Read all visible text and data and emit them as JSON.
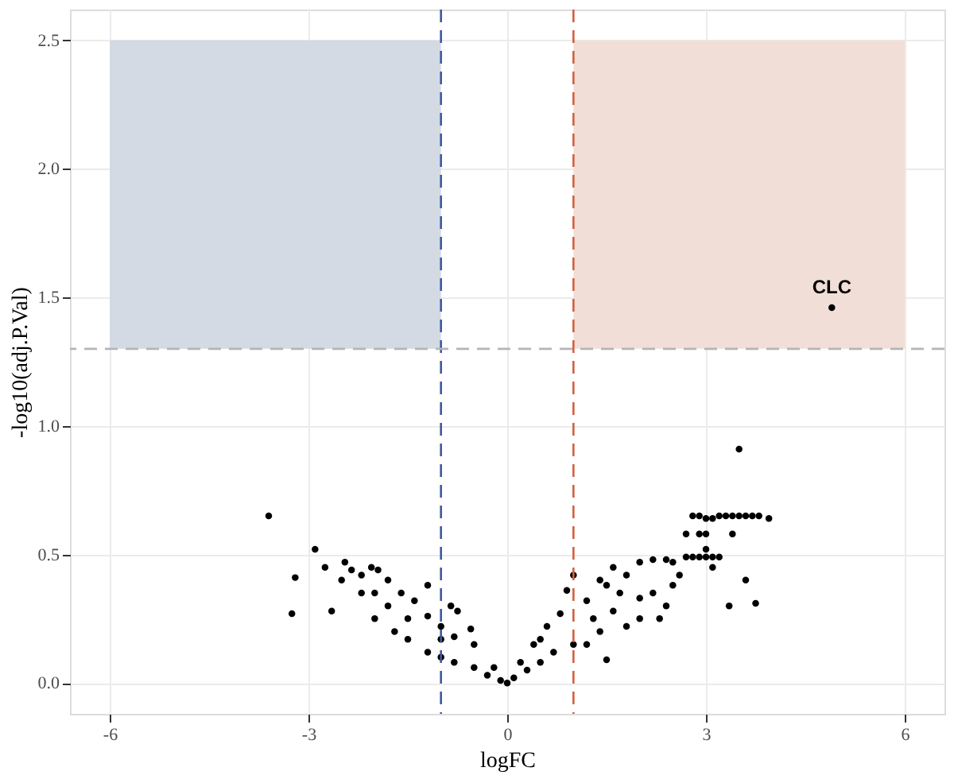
{
  "chart_data": {
    "type": "scatter",
    "xlabel": "logFC",
    "ylabel": "-log10(adj.P.Val)",
    "xlim": [
      -6.6,
      6.6
    ],
    "xticks": [
      -6,
      -3,
      0,
      3,
      6
    ],
    "ylim": [
      -0.12,
      2.62
    ],
    "yticks": [
      {
        "value": 0,
        "label": "0.0"
      },
      0.5,
      {
        "value": 1,
        "label": "1.0"
      },
      1.5,
      {
        "value": 2,
        "label": "2.0"
      },
      2.5
    ],
    "grid": true,
    "marker": "circle",
    "series": [
      {
        "color": "#000000",
        "x": [
          -3.6,
          -3.2,
          -3.25,
          -2.9,
          -2.75,
          -2.65,
          -2.5,
          -2.45,
          -2.35,
          -2.2,
          -2.05,
          -1.95,
          -1.8,
          -1.6,
          -1.4,
          -1.2,
          -1.2,
          -0.85,
          -0.75,
          -0.55,
          -1.0,
          -2.2,
          -2.0,
          -1.7,
          -1.5,
          -1.2,
          -1.0,
          -0.8,
          -0.5,
          -0.3,
          -0.1,
          0,
          -0.5,
          -0.8,
          -1.0,
          -1.5,
          -1.8,
          -2.0,
          -0.2,
          0.1,
          0.2,
          0.3,
          0.4,
          0.5,
          0.6,
          0.7,
          0.8,
          0.9,
          1.0,
          1.0,
          1.2,
          1.2,
          1.4,
          1.4,
          1.5,
          1.6,
          1.6,
          1.8,
          1.8,
          2.0,
          2.0,
          2.0,
          2.2,
          2.2,
          2.3,
          2.4,
          2.5,
          2.5,
          2.6,
          2.7,
          2.8,
          2.9,
          3.0,
          3.1,
          3.2,
          3.0,
          3.1,
          2.7,
          2.9,
          3.0,
          2.8,
          2.9,
          3.0,
          3.1,
          3.2,
          3.3,
          3.4,
          3.5,
          3.6,
          3.7,
          3.8,
          3.95,
          3.4,
          3.6,
          3.35,
          3.75,
          3.5,
          4.9,
          1.5,
          1.7,
          2.4,
          1.3,
          0.5
        ],
        "values": [
          0.65,
          0.41,
          0.27,
          0.52,
          0.45,
          0.28,
          0.4,
          0.47,
          0.44,
          0.42,
          0.45,
          0.44,
          0.4,
          0.35,
          0.32,
          0.38,
          0.26,
          0.3,
          0.28,
          0.21,
          0.22,
          0.35,
          0.25,
          0.2,
          0.17,
          0.12,
          0.1,
          0.08,
          0.06,
          0.03,
          0.01,
          0.0,
          0.15,
          0.18,
          0.17,
          0.25,
          0.3,
          0.35,
          0.06,
          0.02,
          0.08,
          0.05,
          0.15,
          0.08,
          0.22,
          0.12,
          0.27,
          0.36,
          0.42,
          0.15,
          0.32,
          0.15,
          0.4,
          0.2,
          0.09,
          0.45,
          0.28,
          0.42,
          0.22,
          0.47,
          0.33,
          0.25,
          0.48,
          0.35,
          0.25,
          0.48,
          0.47,
          0.38,
          0.42,
          0.49,
          0.49,
          0.49,
          0.49,
          0.49,
          0.49,
          0.52,
          0.45,
          0.58,
          0.58,
          0.58,
          0.65,
          0.65,
          0.64,
          0.64,
          0.65,
          0.65,
          0.65,
          0.65,
          0.65,
          0.65,
          0.65,
          0.64,
          0.58,
          0.4,
          0.3,
          0.31,
          0.91,
          1.46,
          0.38,
          0.35,
          0.3,
          0.25,
          0.17
        ]
      }
    ],
    "ref_lines": [
      {
        "axis": "x",
        "value": -1,
        "color": "#3b5a9d",
        "line_style": "dashed"
      },
      {
        "axis": "x",
        "value": 1,
        "color": "#d4603f",
        "line_style": "dashed"
      },
      {
        "axis": "y",
        "value": 1.3,
        "color": "#b5b5b5",
        "line_style": "dashed"
      }
    ],
    "bands": [
      {
        "axis": "x",
        "from": -6,
        "to": -1,
        "color": "#d3dae4"
      },
      {
        "axis": "x",
        "from": 1,
        "to": 6,
        "color": "#f1dfd7"
      }
    ],
    "annotations": [
      {
        "text": "CLC",
        "x": 4.9,
        "y": 1.46
      }
    ]
  }
}
